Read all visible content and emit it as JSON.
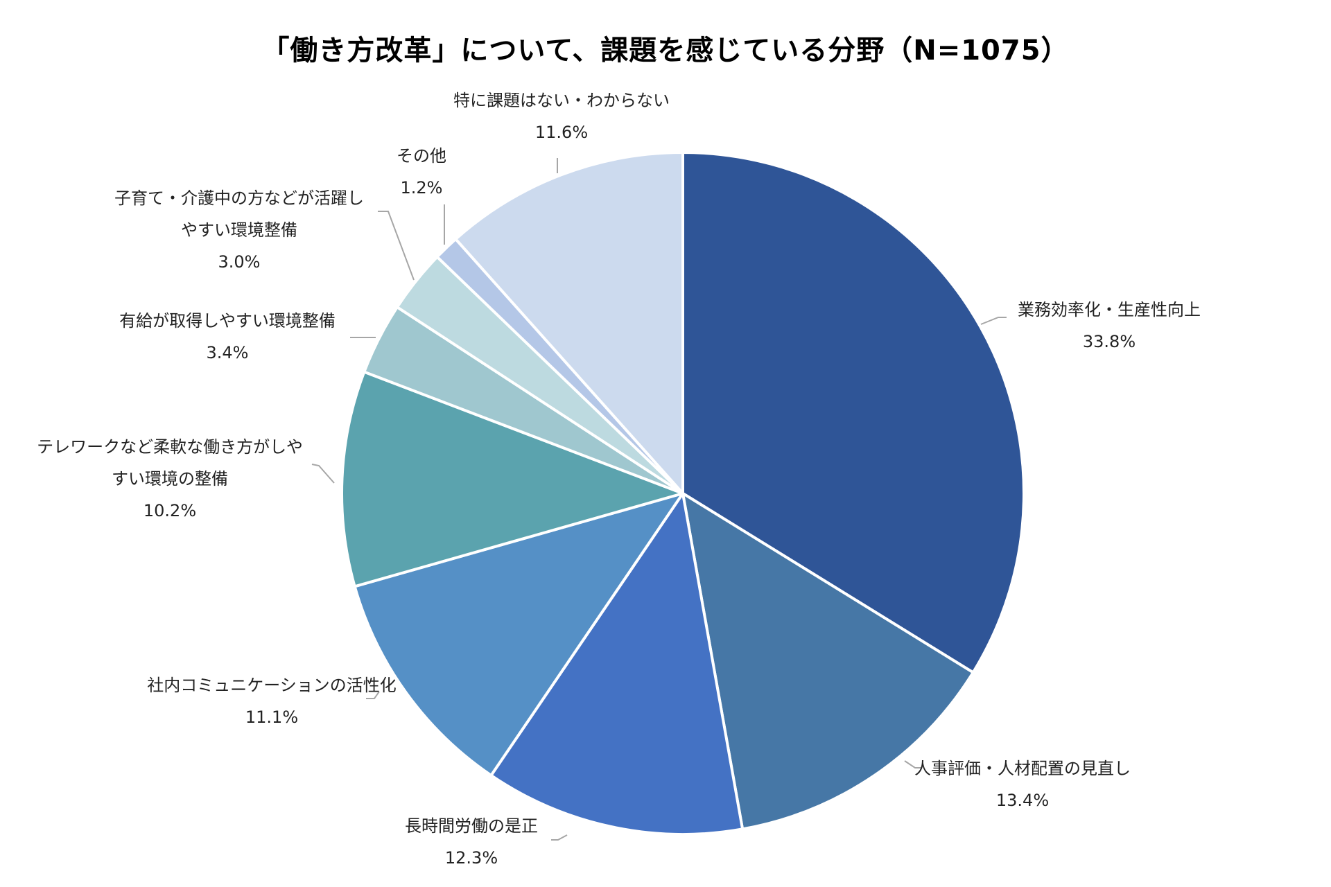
{
  "chart_data": {
    "type": "pie",
    "title": "「働き方改革」について、課題を感じている分野（N=1075）",
    "slices": [
      {
        "label": [
          "業務効率化・生産性向上"
        ],
        "value": 33.8,
        "value_label": "33.8%",
        "color": "#2F5597"
      },
      {
        "label": [
          "人事評価・人材配置の見直し"
        ],
        "value": 13.4,
        "value_label": "13.4%",
        "color": "#4677A6"
      },
      {
        "label": [
          "長時間労働の是正"
        ],
        "value": 12.3,
        "value_label": "12.3%",
        "color": "#4472C4"
      },
      {
        "label": [
          "社内コミュニケーションの活性化"
        ],
        "value": 11.1,
        "value_label": "11.1%",
        "color": "#5590C6"
      },
      {
        "label": [
          "テレワークなど柔軟な働き方がしや",
          "すい環境の整備"
        ],
        "value": 10.2,
        "value_label": "10.2%",
        "color": "#5BA3AE"
      },
      {
        "label": [
          "有給が取得しやすい環境整備"
        ],
        "value": 3.4,
        "value_label": "3.4%",
        "color": "#9FC7CF"
      },
      {
        "label": [
          "子育て・介護中の方などが活躍し",
          "やすい環境整備"
        ],
        "value": 3.0,
        "value_label": "3.0%",
        "color": "#BDDAE0"
      },
      {
        "label": [
          "その他"
        ],
        "value": 1.2,
        "value_label": "1.2%",
        "color": "#B4C7E7"
      },
      {
        "label": [
          "特に課題はない・わからない"
        ],
        "value": 11.6,
        "value_label": "11.6%",
        "color": "#CCDAEE"
      }
    ],
    "start_angle": "12 o'clock",
    "direction": "clockwise"
  }
}
